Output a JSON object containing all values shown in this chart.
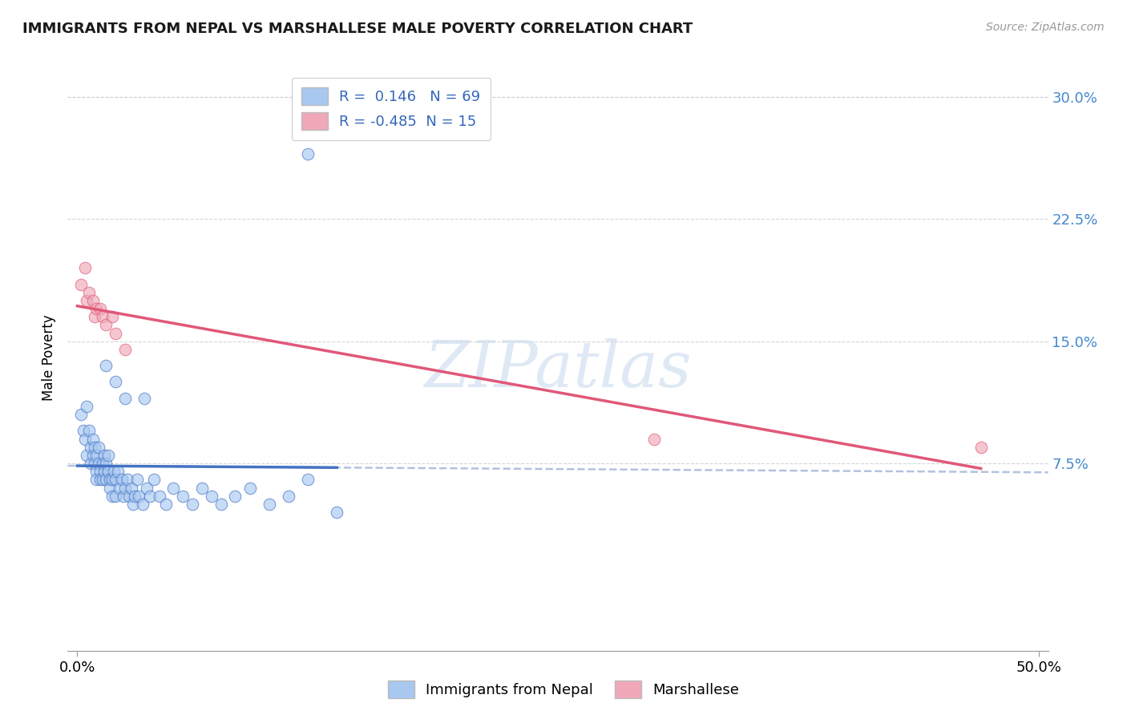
{
  "title": "IMMIGRANTS FROM NEPAL VS MARSHALLESE MALE POVERTY CORRELATION CHART",
  "source": "Source: ZipAtlas.com",
  "ylabel": "Male Poverty",
  "xlim": [
    -0.005,
    0.505
  ],
  "ylim": [
    -0.04,
    0.32
  ],
  "yticks": [
    0.075,
    0.15,
    0.225,
    0.3
  ],
  "ytick_labels": [
    "7.5%",
    "15.0%",
    "22.5%",
    "30.0%"
  ],
  "xticks": [
    0.0,
    0.5
  ],
  "xtick_labels": [
    "0.0%",
    "50.0%"
  ],
  "r_nepal": 0.146,
  "n_nepal": 69,
  "r_marshallese": -0.485,
  "n_marshallese": 15,
  "nepal_color": "#a8c8f0",
  "marshallese_color": "#f0a8b8",
  "nepal_line_color": "#4472c4",
  "marshallese_line_color": "#e05878",
  "trendline_dashed_color": "#aabbdd",
  "watermark_text": "ZIPatlas",
  "nepal_scatter_x": [
    0.002,
    0.003,
    0.004,
    0.005,
    0.005,
    0.006,
    0.007,
    0.007,
    0.008,
    0.008,
    0.009,
    0.009,
    0.01,
    0.01,
    0.01,
    0.011,
    0.011,
    0.012,
    0.012,
    0.013,
    0.013,
    0.014,
    0.014,
    0.015,
    0.015,
    0.016,
    0.016,
    0.017,
    0.017,
    0.018,
    0.018,
    0.019,
    0.02,
    0.02,
    0.021,
    0.022,
    0.023,
    0.024,
    0.025,
    0.026,
    0.027,
    0.028,
    0.029,
    0.03,
    0.031,
    0.032,
    0.034,
    0.036,
    0.038,
    0.04,
    0.043,
    0.046,
    0.05,
    0.055,
    0.06,
    0.065,
    0.07,
    0.075,
    0.082,
    0.09,
    0.1,
    0.11,
    0.12,
    0.135,
    0.015,
    0.02,
    0.025,
    0.035,
    0.12
  ],
  "nepal_scatter_y": [
    0.105,
    0.095,
    0.09,
    0.08,
    0.11,
    0.095,
    0.085,
    0.075,
    0.09,
    0.08,
    0.075,
    0.085,
    0.07,
    0.065,
    0.08,
    0.075,
    0.085,
    0.07,
    0.065,
    0.075,
    0.065,
    0.07,
    0.08,
    0.075,
    0.065,
    0.07,
    0.08,
    0.065,
    0.06,
    0.065,
    0.055,
    0.07,
    0.065,
    0.055,
    0.07,
    0.06,
    0.065,
    0.055,
    0.06,
    0.065,
    0.055,
    0.06,
    0.05,
    0.055,
    0.065,
    0.055,
    0.05,
    0.06,
    0.055,
    0.065,
    0.055,
    0.05,
    0.06,
    0.055,
    0.05,
    0.06,
    0.055,
    0.05,
    0.055,
    0.06,
    0.05,
    0.055,
    0.065,
    0.045,
    0.135,
    0.125,
    0.115,
    0.115,
    0.265
  ],
  "marshallese_scatter_x": [
    0.002,
    0.004,
    0.005,
    0.006,
    0.008,
    0.009,
    0.01,
    0.012,
    0.013,
    0.015,
    0.018,
    0.02,
    0.025,
    0.3,
    0.47
  ],
  "marshallese_scatter_y": [
    0.185,
    0.195,
    0.175,
    0.18,
    0.175,
    0.165,
    0.17,
    0.17,
    0.165,
    0.16,
    0.165,
    0.155,
    0.145,
    0.09,
    0.085
  ],
  "nepal_line_x_start": 0.0,
  "nepal_line_x_end": 0.135,
  "marshallese_line_x_start": 0.0,
  "marshallese_line_x_end": 0.47
}
